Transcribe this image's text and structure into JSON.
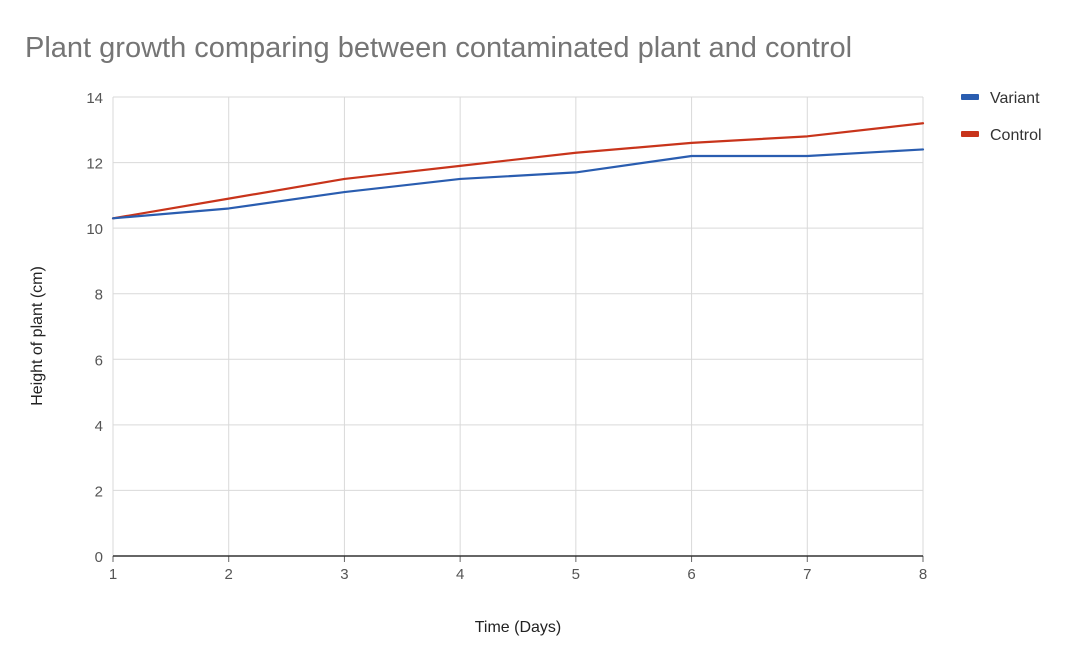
{
  "chart_data": {
    "type": "line",
    "title": "Plant growth comparing between contaminated plant and control",
    "xlabel": "Time (Days)",
    "ylabel": "Height of plant (cm)",
    "x": [
      1,
      2,
      3,
      4,
      5,
      6,
      7,
      8
    ],
    "xlim": [
      1,
      8
    ],
    "ylim": [
      0,
      14
    ],
    "yticks": [
      0,
      2,
      4,
      6,
      8,
      10,
      12,
      14
    ],
    "grid": true,
    "legend_position": "right",
    "series": [
      {
        "name": "Variant",
        "color": "#2a5db0",
        "values": [
          10.3,
          10.6,
          11.1,
          11.5,
          11.7,
          12.2,
          12.2,
          12.4
        ]
      },
      {
        "name": "Control",
        "color": "#c8341b",
        "values": [
          10.3,
          10.9,
          11.5,
          11.9,
          12.3,
          12.6,
          12.8,
          13.2
        ]
      }
    ]
  }
}
